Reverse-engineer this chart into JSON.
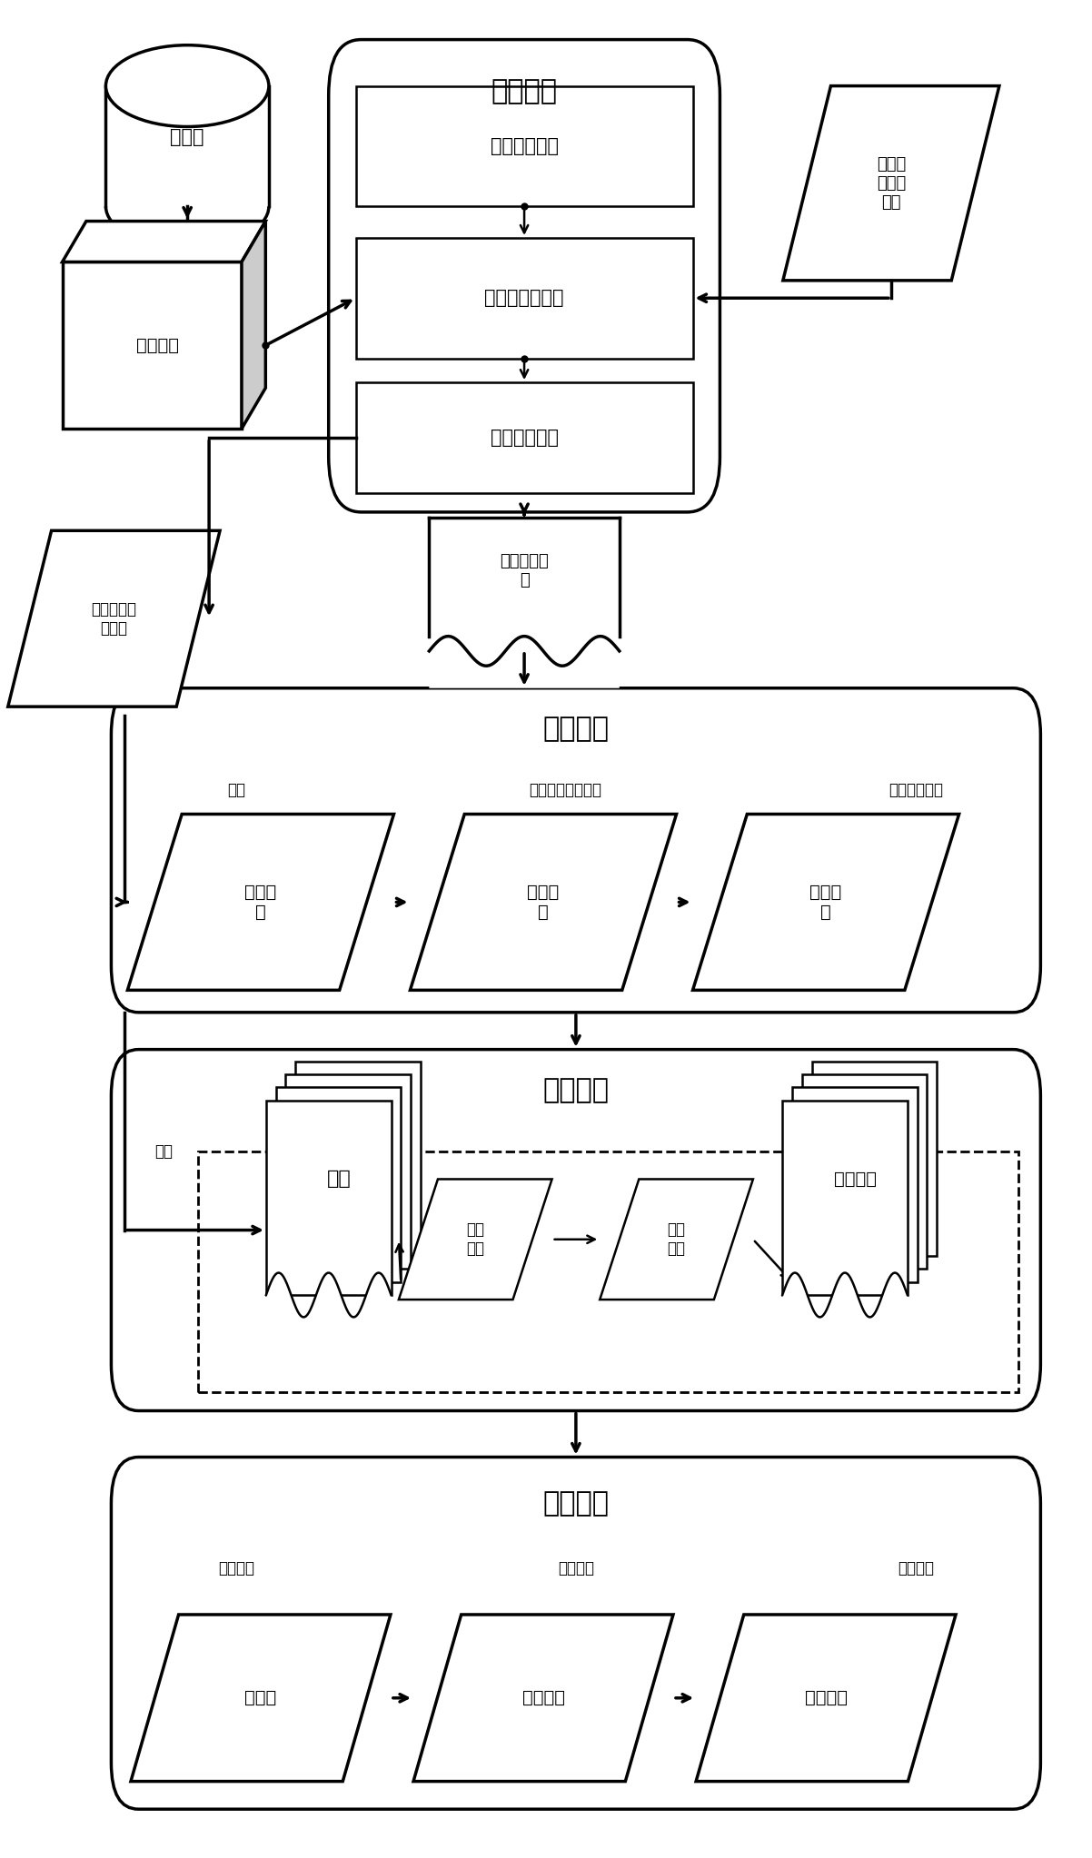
{
  "bg_color": "#ffffff",
  "line_color": "#000000",
  "texts": {
    "database": "数据库",
    "cluster_mem": "集群内存",
    "user_query_feat": "用户查询特\n征序列",
    "user_time_series": "用户在\n询时间\n序列",
    "feat_extract": "特征提取",
    "empirical": "经验模态分解",
    "extract_key": "提取重要点内量",
    "feat_align": "特征维度对齐",
    "basic_feat": "基本特征序\n列",
    "partition_build": "分区构建",
    "extract_label": "抽取",
    "recursive_label": "递归网格排序算法",
    "fill_label": "填充剩余样本",
    "random_sample": "随机样\n本",
    "init_boundary": "初始边\n界",
    "complete_part": "完整分\n区",
    "index_build": "索引构建",
    "index_label": "索引",
    "partition_stack": "分区",
    "index_file_stack": "索引文件",
    "node_split": "结点\n分裂",
    "add_subtree": "增加\n子树",
    "query_process": "查询处理",
    "init_filter": "初始过滤",
    "recursive_trav": "递归遍历",
    "judge_result": "判断结果",
    "root_node": "根节点",
    "subtree_node": "子树结点",
    "query_result": "查询结果"
  },
  "lw": 2.5,
  "lw_thin": 1.8
}
